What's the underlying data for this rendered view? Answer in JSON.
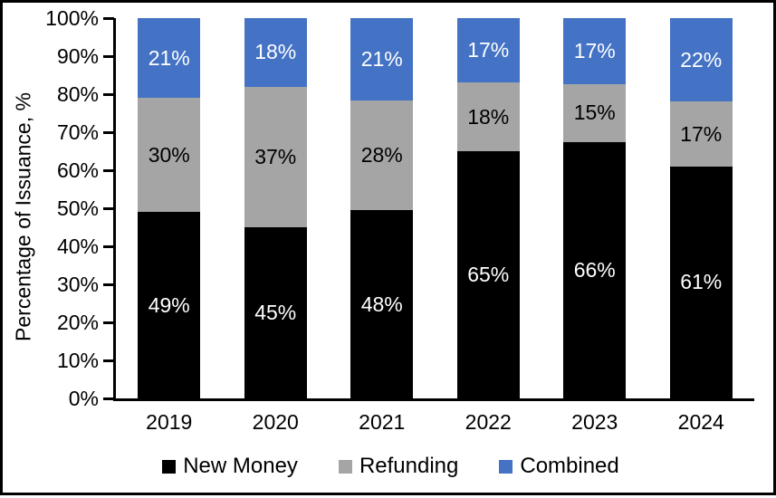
{
  "chart_data": {
    "type": "bar",
    "stacked": true,
    "title": "",
    "xlabel": "",
    "ylabel": "Percentage of Issuance, %",
    "ylim": [
      0,
      100
    ],
    "ytick_step": 10,
    "yticks": [
      "0%",
      "10%",
      "20%",
      "30%",
      "40%",
      "50%",
      "60%",
      "70%",
      "80%",
      "90%",
      "100%"
    ],
    "categories": [
      "2019",
      "2020",
      "2021",
      "2022",
      "2023",
      "2024"
    ],
    "series": [
      {
        "name": "New Money",
        "color": "#000000",
        "label_color": "#ffffff",
        "values": [
          49,
          45,
          48,
          65,
          66,
          61
        ]
      },
      {
        "name": "Refunding",
        "color": "#a5a5a5",
        "label_color": "#000000",
        "values": [
          30,
          37,
          28,
          18,
          15,
          17
        ]
      },
      {
        "name": "Combined",
        "color": "#4472c4",
        "label_color": "#ffffff",
        "values": [
          21,
          18,
          21,
          17,
          17,
          22
        ]
      }
    ],
    "value_suffix": "%",
    "legend_position": "bottom",
    "grid": false,
    "axis_color": "#000000"
  }
}
